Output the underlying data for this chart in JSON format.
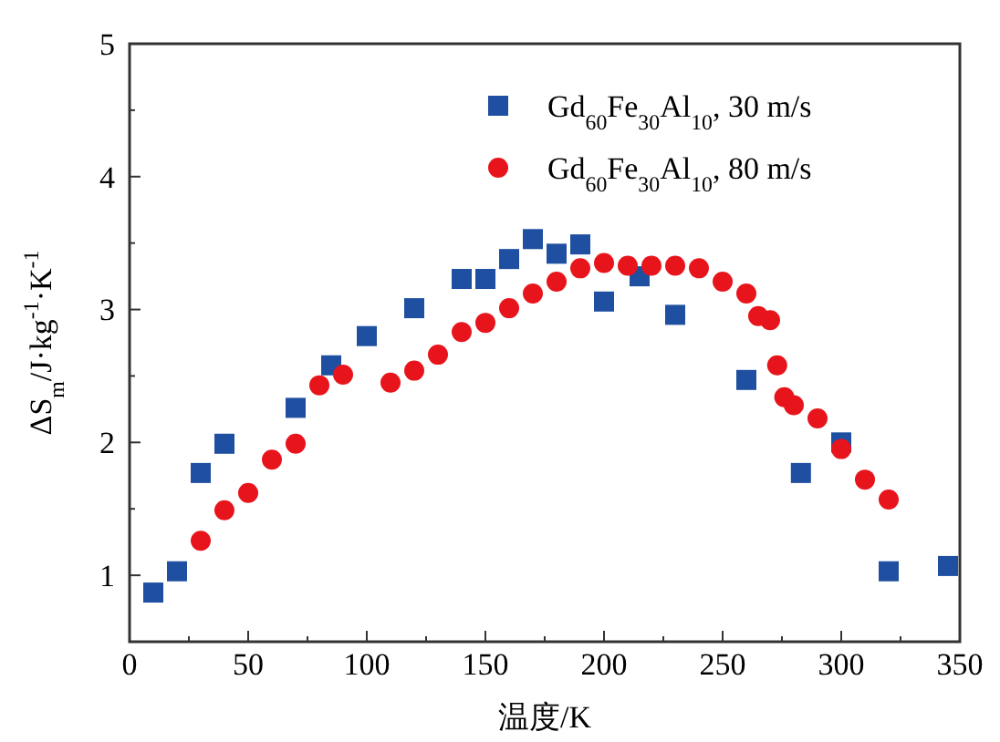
{
  "chart_data": {
    "type": "scatter",
    "xlabel": "温度/K",
    "ylabel": "ΔS$_{m}$/J·kg$^{-1}$·K$^{-1}$",
    "xlim": [
      0,
      350
    ],
    "ylim": [
      0.5,
      5
    ],
    "xticks": [
      0,
      {
        "value": 25,
        "label": null
      },
      50,
      {
        "value": 75,
        "label": null
      },
      100,
      {
        "value": 125,
        "label": null
      },
      150,
      {
        "value": 175,
        "label": null
      },
      200,
      {
        "value": 225,
        "label": null
      },
      250,
      {
        "value": 275,
        "label": null
      },
      300,
      {
        "value": 325,
        "label": null
      },
      350
    ],
    "yticks": [
      {
        "value": 0.5,
        "label": null
      },
      1,
      {
        "value": 1.5,
        "label": null
      },
      2,
      {
        "value": 2.5,
        "label": null
      },
      3,
      {
        "value": 3.5,
        "label": null
      },
      4,
      {
        "value": 4.5,
        "label": null
      },
      5
    ],
    "grid": false,
    "legend": "top right",
    "series": [
      {
        "name": "Gd$_{60}$Fe$_{30}$Al$_{10}$, 30 m/s",
        "color": "#1f4fa0",
        "marker": "square",
        "x": [
          10,
          20,
          30,
          40,
          70,
          85,
          100,
          120,
          140,
          150,
          160,
          170,
          180,
          190,
          200,
          215,
          230,
          260,
          283,
          300,
          320,
          345
        ],
        "values": [
          0.87,
          1.03,
          1.77,
          1.99,
          2.26,
          2.58,
          2.8,
          3.01,
          3.23,
          3.23,
          3.38,
          3.53,
          3.42,
          3.49,
          3.06,
          3.25,
          2.96,
          2.47,
          1.77,
          2.0,
          1.03,
          1.07
        ]
      },
      {
        "name": "Gd$_{60}$Fe$_{30}$Al$_{10}$, 80 m/s",
        "color": "#e8141c",
        "marker": "circle",
        "x": [
          30,
          40,
          50,
          60,
          70,
          80,
          90,
          110,
          120,
          130,
          140,
          150,
          160,
          170,
          180,
          190,
          200,
          210,
          220,
          230,
          240,
          250,
          260,
          265,
          270,
          273,
          276,
          280,
          290,
          300,
          310,
          320
        ],
        "values": [
          1.26,
          1.49,
          1.62,
          1.87,
          1.99,
          2.43,
          2.51,
          2.45,
          2.54,
          2.66,
          2.83,
          2.9,
          3.01,
          3.12,
          3.21,
          3.31,
          3.35,
          3.33,
          3.33,
          3.33,
          3.31,
          3.21,
          3.12,
          2.95,
          2.92,
          2.58,
          2.34,
          2.28,
          2.18,
          1.95,
          1.72,
          1.57
        ]
      }
    ]
  }
}
